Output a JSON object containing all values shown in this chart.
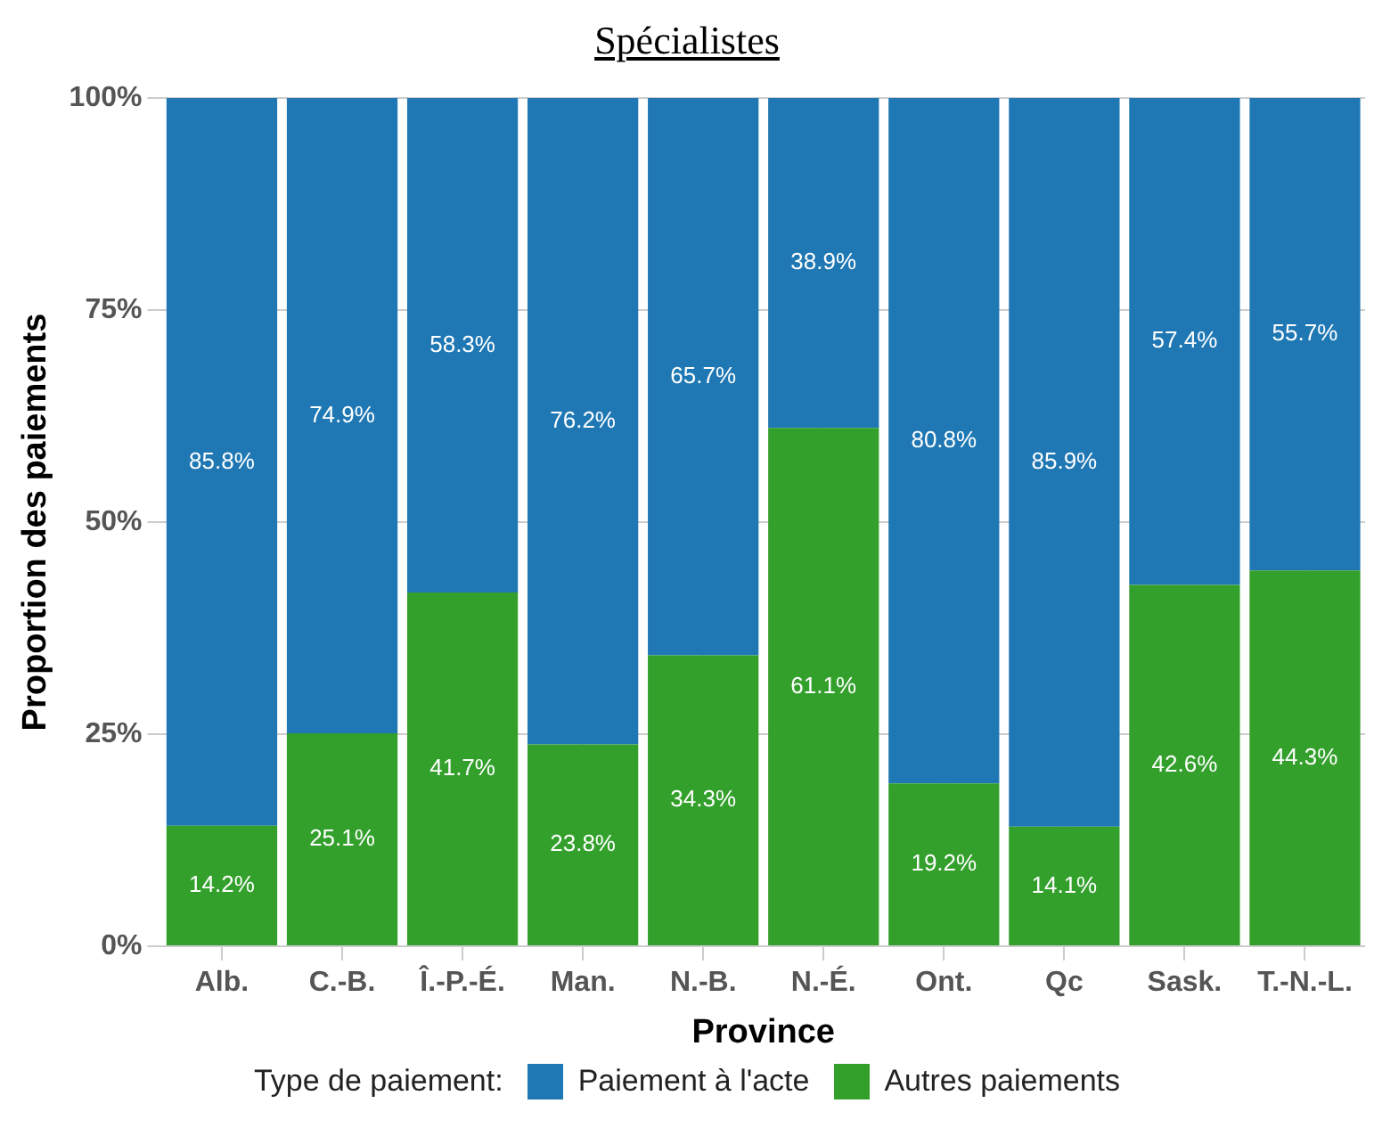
{
  "chart_data": {
    "type": "bar",
    "title": "Spécialistes",
    "xlabel": "Province",
    "ylabel": "Proportion des paiements",
    "legend_title": "Type de paiement:",
    "categories": [
      "Alb.",
      "C.-B.",
      "Î.-P.-É.",
      "Man.",
      "N.-B.",
      "N.-É.",
      "Ont.",
      "Qc",
      "Sask.",
      "T.-N.-L."
    ],
    "stacked": true,
    "legend": "bottom",
    "grid": true,
    "ylim": [
      0,
      100
    ],
    "yticks": [
      {
        "value": 0,
        "label": "0%"
      },
      {
        "value": 25,
        "label": "25%"
      },
      {
        "value": 50,
        "label": "50%"
      },
      {
        "value": 75,
        "label": "75%"
      },
      {
        "value": 100,
        "label": "100%"
      }
    ],
    "series": [
      {
        "name": "Autres paiements",
        "color": "#33a02c",
        "values": [
          14.2,
          25.1,
          41.7,
          23.8,
          34.3,
          61.1,
          19.2,
          14.1,
          42.6,
          44.3
        ],
        "value_labels": [
          "14.2%",
          "25.1%",
          "41.7%",
          "23.8%",
          "34.3%",
          "61.1%",
          "19.2%",
          "14.1%",
          "42.6%",
          "44.3%"
        ]
      },
      {
        "name": "Paiement à l'acte",
        "color": "#1f78b4",
        "values": [
          85.8,
          74.9,
          58.3,
          76.2,
          65.7,
          38.9,
          80.8,
          85.9,
          57.4,
          55.7
        ],
        "value_labels": [
          "85.8%",
          "74.9%",
          "58.3%",
          "76.2%",
          "65.7%",
          "38.9%",
          "80.8%",
          "85.9%",
          "57.4%",
          "55.7%"
        ]
      }
    ]
  }
}
